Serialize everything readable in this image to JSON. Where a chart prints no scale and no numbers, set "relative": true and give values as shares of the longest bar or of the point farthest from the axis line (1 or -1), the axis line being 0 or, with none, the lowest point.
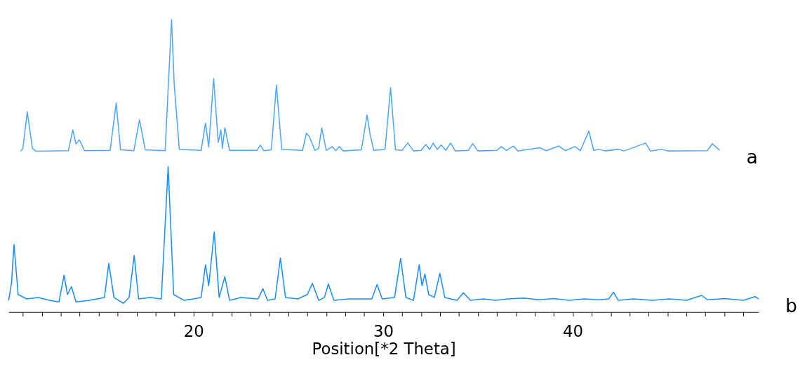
{
  "chart_data": {
    "type": "line",
    "relative": true,
    "xlabel": "Position[*2 Theta]",
    "tick_labels": "x",
    "grid": false,
    "marker": "none",
    "line_style": "solid",
    "xlim": [
      10.25,
      49.8
    ],
    "xticks": [
      {
        "value": 11,
        "label": null
      },
      {
        "value": 12,
        "label": null
      },
      {
        "value": 13,
        "label": null
      },
      {
        "value": 14,
        "label": null
      },
      {
        "value": 15,
        "label": null
      },
      {
        "value": 16,
        "label": null
      },
      {
        "value": 17,
        "label": null
      },
      {
        "value": 18,
        "label": null
      },
      {
        "value": 19,
        "label": null
      },
      20,
      {
        "value": 21,
        "label": null
      },
      {
        "value": 22,
        "label": null
      },
      {
        "value": 23,
        "label": null
      },
      {
        "value": 24,
        "label": null
      },
      {
        "value": 25,
        "label": null
      },
      {
        "value": 26,
        "label": null
      },
      {
        "value": 27,
        "label": null
      },
      {
        "value": 28,
        "label": null
      },
      {
        "value": 29,
        "label": null
      },
      30,
      {
        "value": 31,
        "label": null
      },
      {
        "value": 32,
        "label": null
      },
      {
        "value": 33,
        "label": null
      },
      {
        "value": 34,
        "label": null
      },
      {
        "value": 35,
        "label": null
      },
      {
        "value": 36,
        "label": null
      },
      {
        "value": 37,
        "label": null
      },
      {
        "value": 38,
        "label": null
      },
      {
        "value": 39,
        "label": null
      },
      40,
      {
        "value": 41,
        "label": null
      },
      {
        "value": 42,
        "label": null
      },
      {
        "value": 43,
        "label": null
      },
      {
        "value": 44,
        "label": null
      },
      {
        "value": 45,
        "label": null
      },
      {
        "value": 46,
        "label": null
      },
      {
        "value": 47,
        "label": null
      },
      {
        "value": 48,
        "label": null
      },
      {
        "value": 49,
        "label": null
      }
    ],
    "series": [
      {
        "name": "a",
        "color": "#4da6ff",
        "x": [
          10.88,
          11.0,
          11.23,
          11.5,
          11.7,
          13.4,
          13.63,
          13.8,
          13.98,
          14.25,
          15.6,
          15.92,
          16.15,
          16.85,
          17.15,
          17.45,
          18.5,
          18.84,
          18.98,
          19.25,
          20.4,
          20.63,
          20.8,
          21.06,
          21.3,
          21.44,
          21.52,
          21.65,
          21.9,
          23.35,
          23.52,
          23.7,
          24.1,
          24.37,
          24.65,
          25.75,
          25.95,
          26.1,
          26.4,
          26.6,
          26.76,
          27.0,
          27.32,
          27.5,
          27.68,
          27.9,
          28.85,
          29.15,
          29.3,
          29.5,
          30.1,
          30.39,
          30.65,
          31.0,
          31.3,
          31.6,
          32.0,
          32.25,
          32.45,
          32.64,
          32.85,
          33.06,
          33.3,
          33.56,
          33.8,
          34.5,
          34.72,
          35.0,
          36.0,
          36.23,
          36.5,
          36.87,
          37.1,
          38.27,
          38.6,
          39.26,
          39.6,
          40.11,
          40.4,
          40.85,
          41.1,
          41.37,
          41.7,
          42.39,
          42.7,
          43.84,
          44.1,
          44.68,
          45.0,
          47.1,
          47.36,
          47.75
        ],
        "values": [
          0.55,
          0.56,
          0.685,
          0.56,
          0.55,
          0.552,
          0.623,
          0.575,
          0.589,
          0.552,
          0.553,
          0.715,
          0.555,
          0.552,
          0.658,
          0.555,
          0.552,
          1.0,
          0.779,
          0.556,
          0.553,
          0.646,
          0.565,
          0.799,
          0.58,
          0.623,
          0.56,
          0.63,
          0.553,
          0.553,
          0.571,
          0.552,
          0.555,
          0.776,
          0.556,
          0.553,
          0.612,
          0.601,
          0.553,
          0.56,
          0.63,
          0.553,
          0.566,
          0.552,
          0.566,
          0.551,
          0.555,
          0.674,
          0.612,
          0.553,
          0.556,
          0.767,
          0.555,
          0.553,
          0.578,
          0.551,
          0.553,
          0.573,
          0.556,
          0.578,
          0.556,
          0.571,
          0.553,
          0.578,
          0.551,
          0.553,
          0.576,
          0.551,
          0.553,
          0.566,
          0.553,
          0.568,
          0.551,
          0.562,
          0.552,
          0.568,
          0.552,
          0.566,
          0.552,
          0.619,
          0.553,
          0.557,
          0.551,
          0.557,
          0.551,
          0.578,
          0.551,
          0.557,
          0.551,
          0.552,
          0.576,
          0.553
        ]
      },
      {
        "name": "b",
        "color": "#1a8cff",
        "x": [
          10.25,
          10.4,
          10.53,
          10.75,
          11.2,
          11.8,
          12.4,
          12.9,
          13.17,
          13.35,
          13.56,
          13.8,
          14.5,
          15.3,
          15.53,
          15.8,
          16.3,
          16.6,
          16.87,
          17.1,
          17.7,
          18.3,
          18.66,
          18.95,
          19.5,
          20.0,
          20.4,
          20.63,
          20.8,
          21.09,
          21.35,
          21.65,
          21.9,
          22.5,
          23.4,
          23.66,
          23.9,
          24.3,
          24.58,
          24.85,
          25.5,
          26.0,
          26.27,
          26.6,
          26.9,
          27.11,
          27.4,
          28.2,
          29.4,
          29.68,
          29.95,
          30.6,
          30.92,
          31.2,
          31.6,
          31.9,
          32.05,
          32.2,
          32.4,
          32.7,
          32.99,
          33.25,
          33.9,
          34.23,
          34.6,
          35.3,
          35.9,
          36.6,
          37.4,
          38.2,
          39.0,
          39.8,
          40.6,
          41.4,
          41.9,
          42.15,
          42.4,
          43.2,
          44.2,
          45.1,
          46.0,
          46.8,
          47.1,
          48.0,
          49.0,
          49.61,
          49.8
        ],
        "values": [
          0.04,
          0.1,
          0.231,
          0.06,
          0.045,
          0.05,
          0.04,
          0.035,
          0.126,
          0.06,
          0.087,
          0.035,
          0.04,
          0.05,
          0.167,
          0.05,
          0.03,
          0.05,
          0.194,
          0.045,
          0.05,
          0.045,
          0.498,
          0.06,
          0.04,
          0.045,
          0.05,
          0.162,
          0.09,
          0.274,
          0.05,
          0.121,
          0.04,
          0.05,
          0.045,
          0.08,
          0.04,
          0.045,
          0.185,
          0.05,
          0.045,
          0.06,
          0.098,
          0.04,
          0.05,
          0.096,
          0.04,
          0.045,
          0.045,
          0.094,
          0.045,
          0.05,
          0.183,
          0.05,
          0.04,
          0.162,
          0.09,
          0.13,
          0.06,
          0.05,
          0.132,
          0.05,
          0.04,
          0.066,
          0.04,
          0.045,
          0.04,
          0.045,
          0.048,
          0.042,
          0.046,
          0.04,
          0.045,
          0.042,
          0.045,
          0.068,
          0.04,
          0.045,
          0.04,
          0.045,
          0.04,
          0.057,
          0.042,
          0.046,
          0.04,
          0.053,
          0.045
        ]
      }
    ]
  }
}
